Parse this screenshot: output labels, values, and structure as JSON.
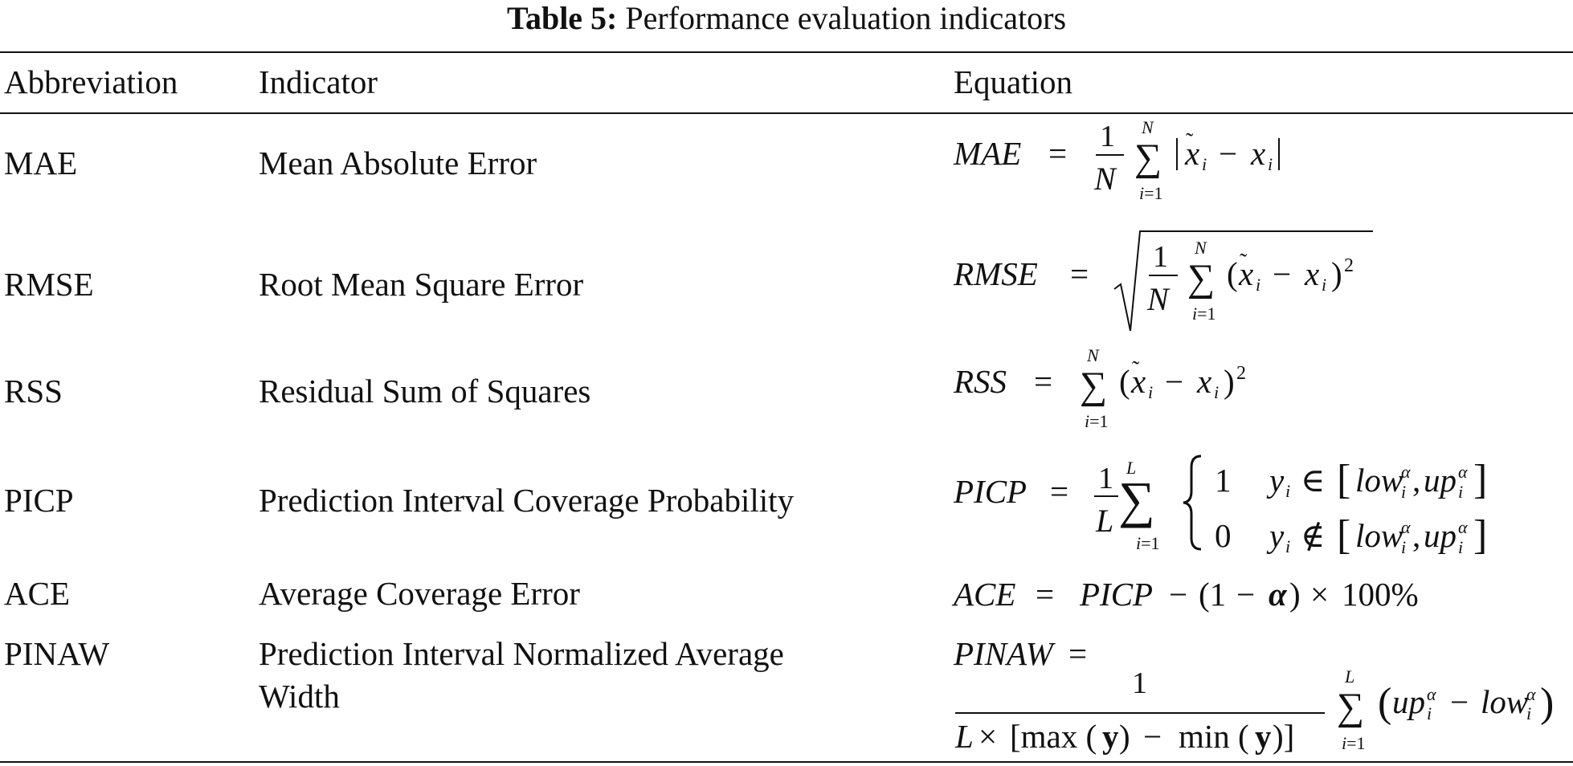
{
  "caption": {
    "label": "Table 5:",
    "text": "Performance evaluation indicators"
  },
  "headers": {
    "abbreviation": "Abbreviation",
    "indicator": "Indicator",
    "equation": "Equation"
  },
  "rows": [
    {
      "abbr": "MAE",
      "indicator": "Mean Absolute Error"
    },
    {
      "abbr": "RMSE",
      "indicator": "Root Mean Square Error"
    },
    {
      "abbr": "RSS",
      "indicator": "Residual Sum of Squares"
    },
    {
      "abbr": "PICP",
      "indicator": "Prediction Interval Coverage Probability"
    },
    {
      "abbr": "ACE",
      "indicator": "Average Coverage Error"
    },
    {
      "abbr": "PINAW",
      "indicator_line1": "Prediction Interval Normalized Average",
      "indicator_line2": "Width"
    }
  ]
}
